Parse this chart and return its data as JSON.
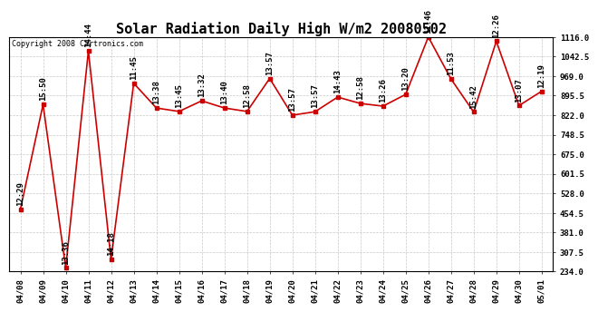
{
  "title": "Solar Radiation Daily High W/m2 20080502",
  "copyright": "Copyright 2008 Cartronics.com",
  "dates": [
    "04/08",
    "04/09",
    "04/10",
    "04/11",
    "04/12",
    "04/13",
    "04/14",
    "04/15",
    "04/16",
    "04/17",
    "04/18",
    "04/19",
    "04/20",
    "04/21",
    "04/22",
    "04/23",
    "04/24",
    "04/25",
    "04/26",
    "04/27",
    "04/28",
    "04/29",
    "04/30",
    "05/01"
  ],
  "values": [
    468,
    862,
    248,
    1063,
    280,
    942,
    849,
    836,
    876,
    849,
    836,
    960,
    822,
    835,
    890,
    866,
    856,
    900,
    1116,
    958,
    834,
    1100,
    858,
    912
  ],
  "times": [
    "12:29",
    "15:50",
    "13:36",
    "14:44",
    "14:18",
    "11:45",
    "13:38",
    "13:45",
    "13:32",
    "13:40",
    "12:58",
    "13:57",
    "13:57",
    "13:57",
    "14:43",
    "12:58",
    "13:26",
    "13:20",
    "11:46",
    "11:53",
    "15:42",
    "12:26",
    "13:07",
    "12:19"
  ],
  "ylim": [
    234.0,
    1116.0
  ],
  "yticks": [
    234.0,
    307.5,
    381.0,
    454.5,
    528.0,
    601.5,
    675.0,
    748.5,
    822.0,
    895.5,
    969.0,
    1042.5,
    1116.0
  ],
  "line_color": "#cc0000",
  "marker_color": "#cc0000",
  "bg_color": "#ffffff",
  "grid_color": "#c8c8c8",
  "title_fontsize": 11,
  "tick_fontsize": 6.5,
  "annot_fontsize": 6.5,
  "copyright_fontsize": 6
}
